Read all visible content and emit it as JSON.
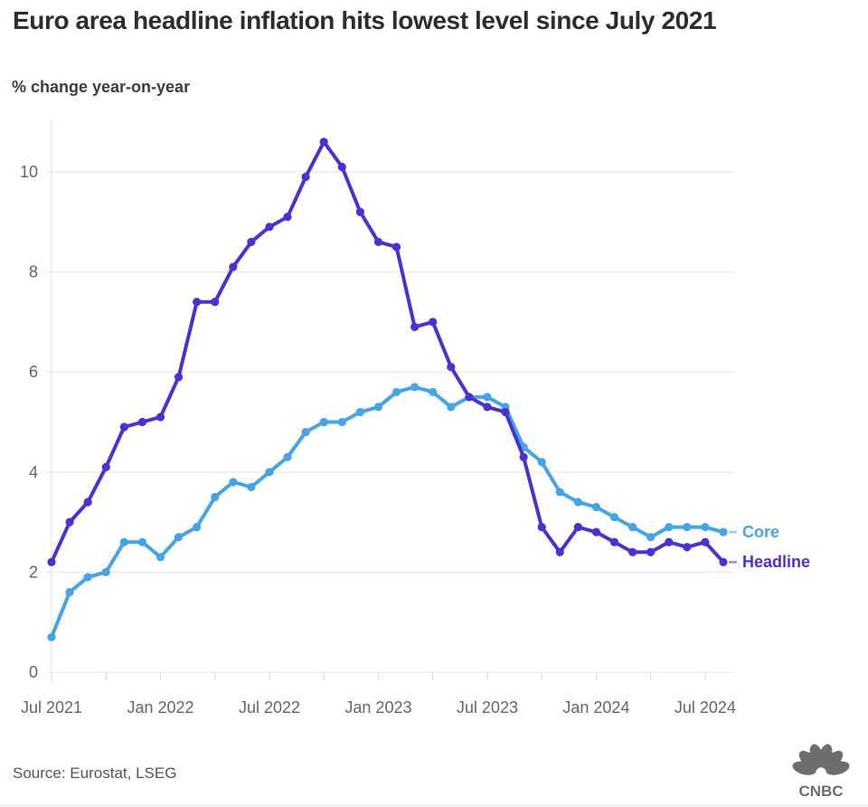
{
  "header": {
    "title": "Euro area headline inflation hits lowest level since July 2021",
    "subtitle": "% change year-on-year"
  },
  "chart_data": {
    "type": "line",
    "title": "Euro area headline inflation hits lowest level since July 2021",
    "subtitle": "% change year-on-year",
    "x": [
      "Jul 2021",
      "Aug 2021",
      "Sep 2021",
      "Oct 2021",
      "Nov 2021",
      "Dec 2021",
      "Jan 2022",
      "Feb 2022",
      "Mar 2022",
      "Apr 2022",
      "May 2022",
      "Jun 2022",
      "Jul 2022",
      "Aug 2022",
      "Sep 2022",
      "Oct 2022",
      "Nov 2022",
      "Dec 2022",
      "Jan 2023",
      "Feb 2023",
      "Mar 2023",
      "Apr 2023",
      "May 2023",
      "Jun 2023",
      "Jul 2023",
      "Aug 2023",
      "Sep 2023",
      "Oct 2023",
      "Nov 2023",
      "Dec 2023",
      "Jan 2024",
      "Feb 2024",
      "Mar 2024",
      "Apr 2024",
      "May 2024",
      "Jun 2024",
      "Jul 2024",
      "Aug 2024"
    ],
    "x_tick_labels": [
      "Jul 2021",
      "Jan 2022",
      "Jul 2022",
      "Jan 2023",
      "Jul 2023",
      "Jan 2024",
      "Jul 2024"
    ],
    "y_ticks": [
      0,
      2,
      4,
      6,
      8,
      10
    ],
    "ylim": [
      0,
      11
    ],
    "grid": "horizontal",
    "legend_position": "line-end",
    "series": [
      {
        "name": "Core",
        "color": "#45a4e5",
        "values": [
          0.7,
          1.6,
          1.9,
          2.0,
          2.6,
          2.6,
          2.3,
          2.7,
          2.9,
          3.5,
          3.8,
          3.7,
          4.0,
          4.3,
          4.8,
          5.0,
          5.0,
          5.2,
          5.3,
          5.6,
          5.7,
          5.6,
          5.3,
          5.5,
          5.5,
          5.3,
          4.5,
          4.2,
          3.6,
          3.4,
          3.3,
          3.1,
          2.9,
          2.7,
          2.9,
          2.9,
          2.9,
          2.8
        ]
      },
      {
        "name": "Headline",
        "color": "#4732d3",
        "values": [
          2.2,
          3.0,
          3.4,
          4.1,
          4.9,
          5.0,
          5.1,
          5.9,
          7.4,
          7.4,
          8.1,
          8.6,
          8.9,
          9.1,
          9.9,
          10.6,
          10.1,
          9.2,
          8.6,
          8.5,
          6.9,
          7.0,
          6.1,
          5.5,
          5.3,
          5.2,
          4.3,
          2.9,
          2.4,
          2.9,
          2.8,
          2.6,
          2.4,
          2.4,
          2.6,
          2.5,
          2.6,
          2.2
        ]
      }
    ]
  },
  "footer": {
    "source": "Source: Eurostat, LSEG",
    "logo_text": "CNBC",
    "logo_color": "#6d6d6d"
  },
  "colors": {
    "background": "#ffffff",
    "grid": "#e9e9e9",
    "axis_line": "#e6e6e6",
    "axis_tick": "#dedede",
    "axis_label": "#666666",
    "title": "#2d2d2d",
    "subtitle": "#3c3c3c",
    "source": "#555555"
  }
}
